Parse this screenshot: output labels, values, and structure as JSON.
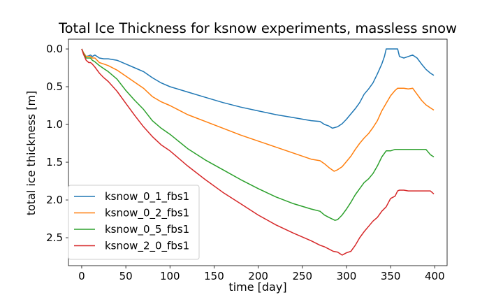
{
  "chart_data": {
    "type": "line",
    "title": "Total Ice Thickness for ksnow experiments, massless snow",
    "xlabel": "time [day]",
    "ylabel": "total ice thickness [m]",
    "xlim": [
      -15,
      414
    ],
    "ylim": [
      2.87,
      -0.13
    ],
    "y_inverted": true,
    "xticks": [
      0,
      50,
      100,
      150,
      200,
      250,
      300,
      350,
      400
    ],
    "xtick_labels": [
      "0",
      "50",
      "100",
      "150",
      "200",
      "250",
      "300",
      "350",
      "400"
    ],
    "yticks": [
      0.0,
      0.5,
      1.0,
      1.5,
      2.0,
      2.5
    ],
    "ytick_labels": [
      "0.0",
      "0.5",
      "1.0",
      "1.5",
      "2.0",
      "2.5"
    ],
    "grid": false,
    "legend_position": "lower-left",
    "series": [
      {
        "name": "ksnow_0_1_fbs1",
        "color": "#1f77b4",
        "x": [
          0,
          2,
          5,
          8,
          10,
          12,
          15,
          20,
          25,
          30,
          40,
          50,
          60,
          70,
          80,
          90,
          100,
          120,
          140,
          160,
          180,
          200,
          220,
          240,
          260,
          270,
          275,
          280,
          284,
          290,
          295,
          300,
          305,
          310,
          315,
          320,
          325,
          330,
          335,
          340,
          343,
          345,
          350,
          355,
          358,
          360,
          365,
          370,
          375,
          380,
          385,
          390,
          395,
          399
        ],
        "values": [
          0.0,
          0.05,
          0.1,
          0.09,
          0.08,
          0.1,
          0.08,
          0.12,
          0.13,
          0.13,
          0.15,
          0.2,
          0.25,
          0.3,
          0.38,
          0.45,
          0.5,
          0.57,
          0.64,
          0.71,
          0.77,
          0.82,
          0.87,
          0.91,
          0.95,
          0.96,
          1.0,
          1.02,
          1.05,
          1.03,
          0.99,
          0.93,
          0.86,
          0.79,
          0.71,
          0.6,
          0.53,
          0.45,
          0.33,
          0.2,
          0.1,
          0.0,
          0.0,
          0.0,
          0.0,
          0.1,
          0.12,
          0.1,
          0.08,
          0.12,
          0.2,
          0.27,
          0.32,
          0.35
        ]
      },
      {
        "name": "ksnow_0_2_fbs1",
        "color": "#ff7f0e",
        "x": [
          0,
          2,
          5,
          8,
          10,
          12,
          15,
          20,
          25,
          30,
          40,
          50,
          60,
          70,
          80,
          90,
          100,
          120,
          140,
          160,
          180,
          200,
          220,
          240,
          260,
          270,
          275,
          280,
          286,
          290,
          295,
          300,
          305,
          310,
          315,
          320,
          325,
          330,
          335,
          340,
          345,
          350,
          355,
          358,
          360,
          365,
          370,
          375,
          380,
          385,
          390,
          395,
          399
        ],
        "values": [
          0.0,
          0.05,
          0.1,
          0.1,
          0.1,
          0.12,
          0.12,
          0.18,
          0.2,
          0.22,
          0.28,
          0.36,
          0.44,
          0.52,
          0.63,
          0.7,
          0.75,
          0.87,
          0.96,
          1.05,
          1.14,
          1.22,
          1.3,
          1.38,
          1.46,
          1.48,
          1.52,
          1.57,
          1.62,
          1.6,
          1.56,
          1.49,
          1.42,
          1.33,
          1.25,
          1.18,
          1.12,
          1.04,
          0.95,
          0.82,
          0.72,
          0.62,
          0.55,
          0.52,
          0.52,
          0.52,
          0.53,
          0.52,
          0.6,
          0.68,
          0.74,
          0.78,
          0.81
        ]
      },
      {
        "name": "ksnow_0_5_fbs1",
        "color": "#2ca02c",
        "x": [
          0,
          2,
          5,
          8,
          10,
          12,
          15,
          20,
          25,
          30,
          40,
          50,
          60,
          70,
          80,
          90,
          100,
          120,
          140,
          160,
          180,
          200,
          220,
          240,
          260,
          270,
          275,
          280,
          287,
          290,
          295,
          300,
          305,
          310,
          315,
          320,
          325,
          330,
          335,
          340,
          345,
          350,
          355,
          358,
          360,
          365,
          370,
          375,
          380,
          385,
          390,
          395,
          399
        ],
        "values": [
          0.0,
          0.06,
          0.12,
          0.12,
          0.12,
          0.15,
          0.17,
          0.22,
          0.26,
          0.3,
          0.4,
          0.55,
          0.68,
          0.8,
          0.95,
          1.05,
          1.13,
          1.32,
          1.47,
          1.6,
          1.73,
          1.85,
          1.96,
          2.05,
          2.12,
          2.15,
          2.2,
          2.23,
          2.27,
          2.26,
          2.2,
          2.12,
          2.03,
          1.93,
          1.85,
          1.77,
          1.72,
          1.65,
          1.55,
          1.43,
          1.35,
          1.35,
          1.33,
          1.33,
          1.33,
          1.33,
          1.33,
          1.33,
          1.33,
          1.33,
          1.33,
          1.4,
          1.43
        ]
      },
      {
        "name": "ksnow_2_0_fbs1",
        "color": "#d62728",
        "x": [
          0,
          2,
          5,
          8,
          10,
          12,
          15,
          20,
          25,
          30,
          40,
          50,
          60,
          70,
          80,
          90,
          100,
          120,
          140,
          160,
          180,
          200,
          220,
          240,
          260,
          270,
          275,
          280,
          285,
          290,
          295,
          300,
          305,
          310,
          315,
          320,
          325,
          330,
          335,
          340,
          345,
          350,
          355,
          358,
          360,
          365,
          370,
          375,
          380,
          385,
          390,
          395,
          399
        ],
        "values": [
          0.0,
          0.07,
          0.15,
          0.18,
          0.18,
          0.2,
          0.24,
          0.32,
          0.38,
          0.43,
          0.56,
          0.72,
          0.88,
          1.03,
          1.16,
          1.27,
          1.35,
          1.55,
          1.73,
          1.9,
          2.05,
          2.2,
          2.33,
          2.44,
          2.54,
          2.6,
          2.62,
          2.65,
          2.68,
          2.69,
          2.73,
          2.7,
          2.68,
          2.6,
          2.5,
          2.42,
          2.35,
          2.28,
          2.23,
          2.15,
          2.09,
          1.98,
          1.95,
          1.88,
          1.87,
          1.87,
          1.88,
          1.88,
          1.88,
          1.88,
          1.88,
          1.88,
          1.92
        ]
      }
    ]
  }
}
